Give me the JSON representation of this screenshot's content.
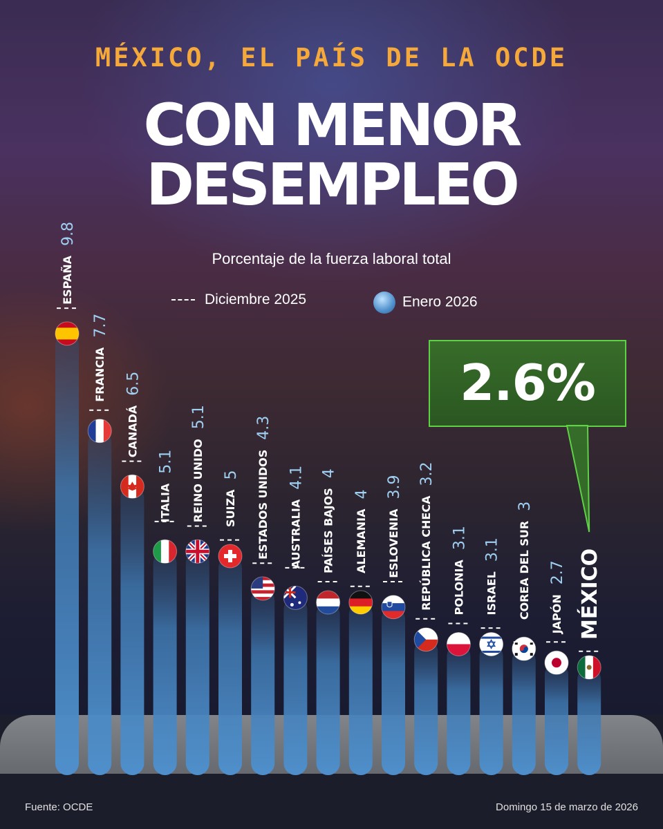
{
  "header": {
    "kicker": "MÉXICO, EL PAÍS DE LA OCDE",
    "title_line1": "CON MENOR",
    "title_line2": "DESEMPLEO",
    "subtitle": "Porcentaje de la fuerza laboral total"
  },
  "legend": {
    "dashed_label": "Diciembre 2025",
    "dot_label": "Enero 2026"
  },
  "callout": {
    "text": "2.6%"
  },
  "footer": {
    "source": "Fuente: OCDE",
    "date": "Domingo 15 de marzo de 2026"
  },
  "colors": {
    "bar": "#4f8fcb",
    "highlight": "#5fd146",
    "kicker": "#f5a93a",
    "value_label": "#9fd0f2"
  },
  "chart_data": {
    "type": "bar",
    "title": "CON MENOR DESEMPLEO",
    "ylabel": "Porcentaje de la fuerza laboral total",
    "categories": [
      "ESPAÑA",
      "FRANCIA",
      "CANADÁ",
      "ITALIA",
      "REINO UNIDO",
      "SUIZA",
      "ESTADOS UNIDOS",
      "AUSTRALIA",
      "PAÍSES BAJOS",
      "ALEMANIA",
      "ESLOVENIA",
      "REPÚBLICA CHECA",
      "POLONIA",
      "ISRAEL",
      "COREA DEL SUR",
      "JAPÓN",
      "MÉXICO"
    ],
    "value_labels": [
      "9.8",
      "7.7",
      "6.5",
      "5.1",
      "5.1",
      "5",
      "4.3",
      "4.1",
      "4",
      "4",
      "3.9",
      "3.2",
      "3.1",
      "3.1",
      "3",
      "2.7",
      ""
    ],
    "series": [
      {
        "name": "Enero 2026",
        "values": [
          9.8,
          7.7,
          6.5,
          5.1,
          5.1,
          5.0,
          4.3,
          4.1,
          4.0,
          4.0,
          3.9,
          3.2,
          3.1,
          3.1,
          3.0,
          2.7,
          2.6
        ]
      },
      {
        "name": "Diciembre 2025",
        "values": [
          9.9,
          7.7,
          6.6,
          5.3,
          5.2,
          4.9,
          4.4,
          4.3,
          4.0,
          3.9,
          4.0,
          3.2,
          3.1,
          3.0,
          2.7,
          2.7,
          2.5
        ]
      }
    ],
    "highlight": "MÉXICO",
    "flags": [
      "spain-flag-icon",
      "france-flag-icon",
      "canada-flag-icon",
      "italy-flag-icon",
      "uk-flag-icon",
      "switzerland-flag-icon",
      "usa-flag-icon",
      "australia-flag-icon",
      "netherlands-flag-icon",
      "germany-flag-icon",
      "slovenia-flag-icon",
      "czechia-flag-icon",
      "poland-flag-icon",
      "israel-flag-icon",
      "south-korea-flag-icon",
      "japan-flag-icon",
      "mexico-flag-icon"
    ],
    "ylim": [
      0,
      10
    ],
    "grid": false,
    "legend": "top-center",
    "sorted": "descending"
  }
}
